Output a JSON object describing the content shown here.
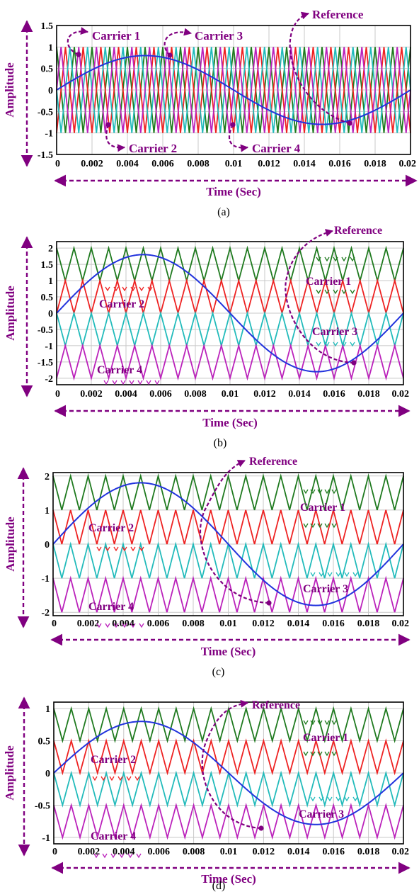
{
  "colors": {
    "carrier1": "#1f7a1f",
    "carrier2": "#ee2222",
    "carrier3": "#22bbbb",
    "carrier4": "#bb22bb",
    "reference": "#2233dd",
    "annotation": "#800080",
    "grid": "#c8c8c8"
  },
  "chart_data": [
    {
      "caption": "(a)",
      "type": "line",
      "xlabel": "Time (Sec)",
      "ylabel": "Amplitude",
      "xlim": [
        0,
        0.02
      ],
      "ylim": [
        -1.5,
        1.5
      ],
      "x_ticks": [
        "0",
        "0.002",
        "0.004",
        "0.006",
        "0.008",
        "0.01",
        "0.012",
        "0.014",
        "0.016",
        "0.018",
        "0.02"
      ],
      "y_ticks": [
        {
          "v": 1.5,
          "label": "1.5"
        },
        {
          "v": 1,
          "label": "1"
        },
        {
          "v": 0.5,
          "label": "0.5"
        },
        {
          "v": 0,
          "label": "0"
        },
        {
          "v": -0.5,
          "label": "-0.5"
        },
        {
          "v": -1,
          "label": "-1"
        },
        {
          "v": -1.5,
          "label": "-1.5"
        }
      ],
      "grid": true,
      "reference": {
        "amplitude": 0.8,
        "frequency_hz": 50
      },
      "carriers": {
        "periods_per_cycle": 20,
        "series": [
          {
            "name": "Carrier 1",
            "min": -1,
            "max": 1,
            "phase_deg": 0
          },
          {
            "name": "Carrier 2",
            "min": -1,
            "max": 1,
            "phase_deg": 180
          },
          {
            "name": "Carrier 3",
            "min": -1,
            "max": 1,
            "phase_deg": 90
          },
          {
            "name": "Carrier 4",
            "min": -1,
            "max": 1,
            "phase_deg": 270
          }
        ]
      },
      "annotations": [
        {
          "text": "Carrier 1"
        },
        {
          "text": "Carrier 2"
        },
        {
          "text": "Carrier 3"
        },
        {
          "text": "Carrier 4"
        },
        {
          "text": "Reference"
        }
      ]
    },
    {
      "caption": "(b)",
      "type": "line",
      "xlabel": "Time (Sec)",
      "ylabel": "Amplitude",
      "xlim": [
        0,
        0.02
      ],
      "ylim": [
        -2.2,
        2.2
      ],
      "x_ticks": [
        "0",
        "0.002",
        "0.004",
        "0.006",
        "0.008",
        "0.01",
        "0.012",
        "0.014",
        "0.016",
        "0.018",
        "0.02"
      ],
      "y_ticks": [
        {
          "v": 2,
          "label": "2"
        },
        {
          "v": 1.5,
          "label": "1.5"
        },
        {
          "v": 1,
          "label": "1"
        },
        {
          "v": 0.5,
          "label": "0.5"
        },
        {
          "v": 0,
          "label": "0"
        },
        {
          "v": -0.5,
          "label": "-0.5"
        },
        {
          "v": -1,
          "label": "-1"
        },
        {
          "v": -1.5,
          "label": "-1.5"
        },
        {
          "v": -2,
          "label": "-2"
        }
      ],
      "grid": true,
      "reference": {
        "amplitude": 1.8,
        "frequency_hz": 50
      },
      "carriers": {
        "periods_per_cycle": 20,
        "series": [
          {
            "name": "Carrier 1",
            "min": 1,
            "max": 2,
            "phase_deg": 0
          },
          {
            "name": "Carrier 2",
            "min": 0,
            "max": 1,
            "phase_deg": 180
          },
          {
            "name": "Carrier 3",
            "min": -1,
            "max": 0,
            "phase_deg": 0
          },
          {
            "name": "Carrier 4",
            "min": -2,
            "max": -1,
            "phase_deg": 180
          }
        ]
      },
      "annotations": [
        {
          "text": "Carrier 1"
        },
        {
          "text": "Carrier 2"
        },
        {
          "text": "Carrier 3"
        },
        {
          "text": "Carrier 4"
        },
        {
          "text": "Reference"
        }
      ]
    },
    {
      "caption": "(c)",
      "type": "line",
      "xlabel": "Time (Sec)",
      "ylabel": "Amplitude",
      "xlim": [
        0,
        0.02
      ],
      "ylim": [
        -2.1,
        2.1
      ],
      "x_ticks": [
        "0",
        "0.002",
        "0.004",
        "0.006",
        "0.008",
        "0.01",
        "0.012",
        "0.014",
        "0.016",
        "0.018",
        "0.02"
      ],
      "y_ticks": [
        {
          "v": 2,
          "label": "2"
        },
        {
          "v": 1,
          "label": "1"
        },
        {
          "v": 0,
          "label": "0"
        },
        {
          "v": -1,
          "label": "-1"
        },
        {
          "v": -2,
          "label": "-2"
        }
      ],
      "grid": true,
      "reference": {
        "amplitude": 1.8,
        "frequency_hz": 50
      },
      "carriers": {
        "periods_per_cycle": 20,
        "series": [
          {
            "name": "Carrier 1",
            "min": 1,
            "max": 2,
            "phase_deg": 0
          },
          {
            "name": "Carrier 2",
            "min": 0,
            "max": 1,
            "phase_deg": 0
          },
          {
            "name": "Carrier 3",
            "min": -1,
            "max": 0,
            "phase_deg": 0
          },
          {
            "name": "Carrier 4",
            "min": -2,
            "max": -1,
            "phase_deg": 0
          }
        ]
      },
      "annotations": [
        {
          "text": "Carrier 1"
        },
        {
          "text": "Carrier 2"
        },
        {
          "text": "Carrier 3"
        },
        {
          "text": "Carrier 4"
        },
        {
          "text": "Reference"
        }
      ]
    },
    {
      "caption": "(d)",
      "type": "line",
      "xlabel": "Time (Sec)",
      "ylabel": "Amplitude",
      "xlim": [
        0,
        0.02
      ],
      "ylim": [
        -1.1,
        1.1
      ],
      "x_ticks": [
        "0",
        "0.002",
        "0.004",
        "0.006",
        "0.008",
        "0.01",
        "0.012",
        "0.014",
        "0.016",
        "0.018",
        "0.02"
      ],
      "y_ticks": [
        {
          "v": 1,
          "label": "1"
        },
        {
          "v": 0.5,
          "label": "0.5"
        },
        {
          "v": 0,
          "label": "0"
        },
        {
          "v": -0.5,
          "label": "-0.5"
        },
        {
          "v": -1,
          "label": "-1"
        }
      ],
      "grid": true,
      "reference": {
        "amplitude": 0.8,
        "frequency_hz": 50
      },
      "carriers": {
        "periods_per_cycle": 20,
        "series": [
          {
            "name": "Carrier 1",
            "min": 0.5,
            "max": 1,
            "phase_deg": 0
          },
          {
            "name": "Carrier 2",
            "min": 0,
            "max": 0.5,
            "phase_deg": 0
          },
          {
            "name": "Carrier 3",
            "min": -0.5,
            "max": 0,
            "phase_deg": 0
          },
          {
            "name": "Carrier 4",
            "min": -1,
            "max": -0.5,
            "phase_deg": 0
          }
        ]
      },
      "annotations": [
        {
          "text": "Carrier 1"
        },
        {
          "text": "Carrier 2"
        },
        {
          "text": "Carrier 3"
        },
        {
          "text": "Carrier 4"
        },
        {
          "text": "Reference"
        }
      ]
    }
  ]
}
